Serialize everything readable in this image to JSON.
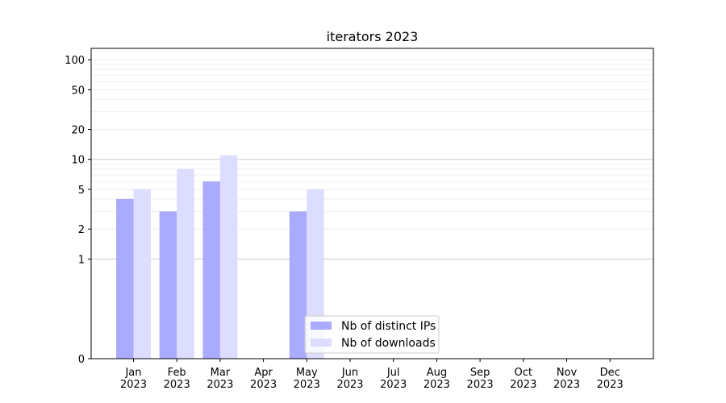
{
  "chart_data": {
    "type": "bar",
    "title": "iterators 2023",
    "xlabel": "",
    "ylabel": "",
    "yscale": "symlog",
    "ylim": [
      0,
      130
    ],
    "yticks": [
      0,
      1,
      2,
      5,
      10,
      20,
      50,
      100
    ],
    "categories": [
      "Jan\n2023",
      "Feb\n2023",
      "Mar\n2023",
      "Apr\n2023",
      "May\n2023",
      "Jun\n2023",
      "Jul\n2023",
      "Aug\n2023",
      "Sep\n2023",
      "Oct\n2023",
      "Nov\n2023",
      "Dec\n2023"
    ],
    "series": [
      {
        "name": "Nb of distinct IPs",
        "color": "#aaaaff",
        "values": [
          4,
          3,
          6,
          0,
          3,
          0,
          0,
          0,
          0,
          0,
          0,
          0
        ]
      },
      {
        "name": "Nb of downloads",
        "color": "#ddddff",
        "values": [
          5,
          8,
          11,
          0,
          5,
          0,
          0,
          0,
          0,
          0,
          0,
          0
        ]
      }
    ],
    "legend_position": "bottom-center",
    "grid": true
  }
}
